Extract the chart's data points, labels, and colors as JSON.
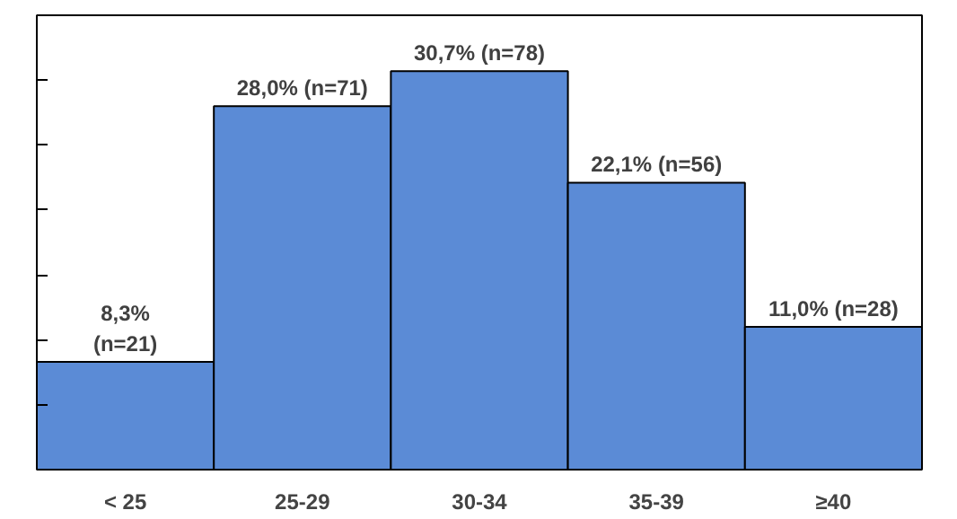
{
  "chart_data": {
    "type": "bar",
    "categories": [
      "< 25",
      "25-29",
      "30-34",
      "35-39",
      "≥40"
    ],
    "values": [
      8.3,
      28.0,
      30.7,
      22.1,
      11.0
    ],
    "value_labels": [
      "8,3%\n(n=21)",
      "28,0% (n=71)",
      "30,7% (n=78)",
      "22,1% (n=56)",
      "11,0% (n=28)"
    ],
    "color": "#5b8bd6",
    "ylim": [
      0,
      35
    ],
    "yticks": [
      {
        "value": 0,
        "label": null
      },
      {
        "value": 5,
        "label": null
      },
      {
        "value": 10,
        "label": null
      },
      {
        "value": 15,
        "label": null
      },
      {
        "value": 20,
        "label": null
      },
      {
        "value": 25,
        "label": null
      },
      {
        "value": 30,
        "label": null
      },
      {
        "value": 35,
        "label": null
      }
    ],
    "tick_labels": "x",
    "grid": false
  }
}
